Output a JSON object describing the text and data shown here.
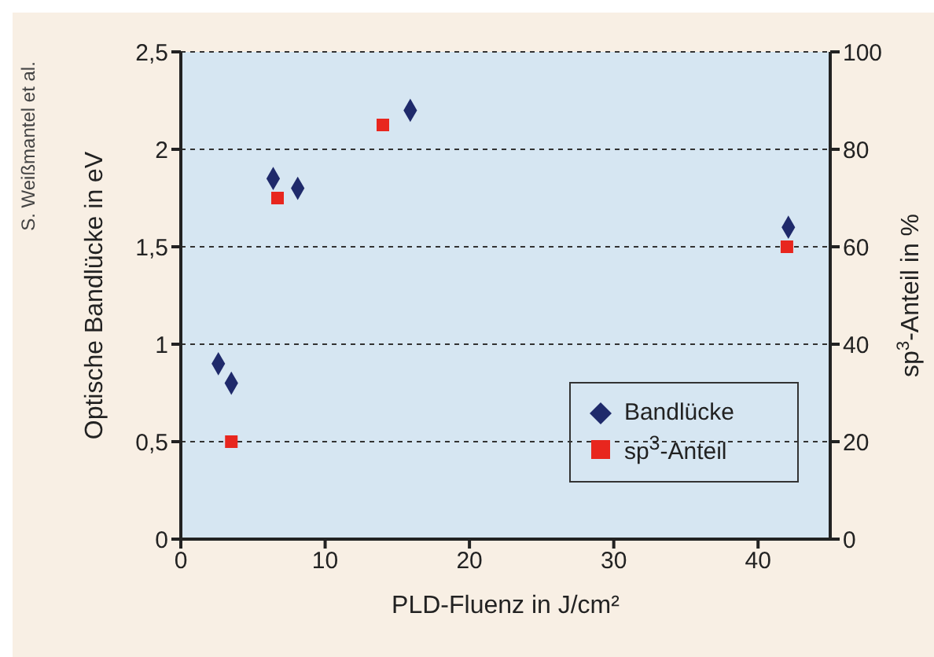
{
  "chart_data": {
    "type": "scatter",
    "xlabel": "PLD-Fluenz in J/cm²",
    "ylabel": "Optische Bandlücke in eV",
    "y2label": "sp$^{3}$-Anteil in %",
    "annotations": [
      "S. Weißmantel et al."
    ],
    "xlim": [
      0,
      45
    ],
    "xticks": [
      0,
      10,
      20,
      30,
      40
    ],
    "ylim": [
      0,
      2.5
    ],
    "yticks": [
      0,
      {
        "value": 0.5,
        "label": "0,5"
      },
      1,
      {
        "value": 1.5,
        "label": "1,5"
      },
      2,
      {
        "value": 2.5,
        "label": "2,5"
      }
    ],
    "y2lim": [
      0,
      100
    ],
    "y2ticks": [
      0,
      20,
      40,
      60,
      80,
      100
    ],
    "grid": "y",
    "legend": "bottom right",
    "series": [
      {
        "name": "Bandlücke",
        "color": "#1f2a6b",
        "marker": "diamond",
        "x": [
          2.6,
          3.5,
          6.4,
          8.1,
          15.9,
          42.1
        ],
        "values": [
          0.9,
          0.8,
          1.85,
          1.8,
          2.2,
          1.6
        ]
      },
      {
        "name": "sp$^{3}$-Anteil",
        "color": "#e8261e",
        "marker": "square",
        "axis": "y2",
        "x": [
          3.5,
          6.7,
          14,
          42
        ],
        "values": [
          20,
          70,
          85,
          60
        ]
      }
    ]
  }
}
